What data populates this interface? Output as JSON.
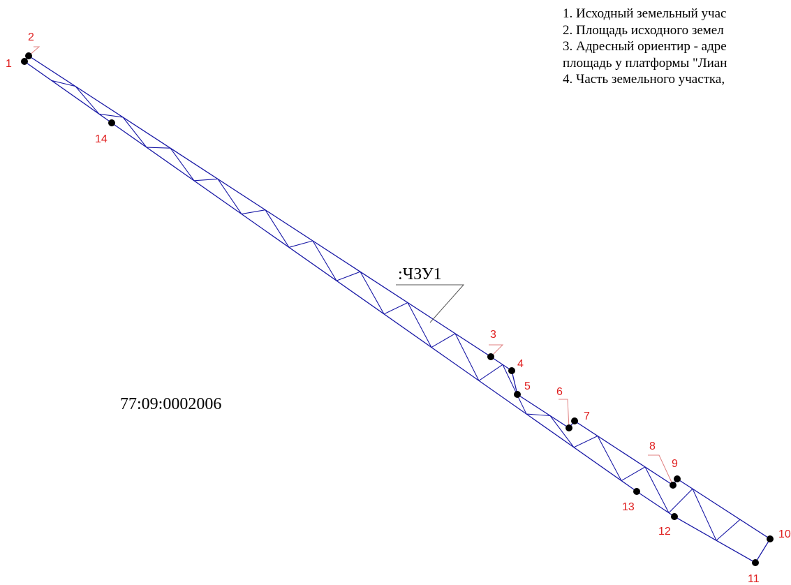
{
  "notes": [
    "1. Исходный земельный учас",
    "2. Площадь исходного земел",
    "3. Адресный ориентир - адре",
    "площадь у платформы \"Лиан",
    "4. Часть земельного участка,"
  ],
  "part_label": ":ЧЗУ1",
  "cadastral_block": "77:09:0002006",
  "points": [
    "1",
    "2",
    "3",
    "4",
    "5",
    "6",
    "7",
    "8",
    "9",
    "10",
    "11",
    "12",
    "13",
    "14"
  ],
  "colors": {
    "boundary": "#1a1aa6",
    "label": "#e02020",
    "leader": "#e08080",
    "point": "#000000"
  }
}
